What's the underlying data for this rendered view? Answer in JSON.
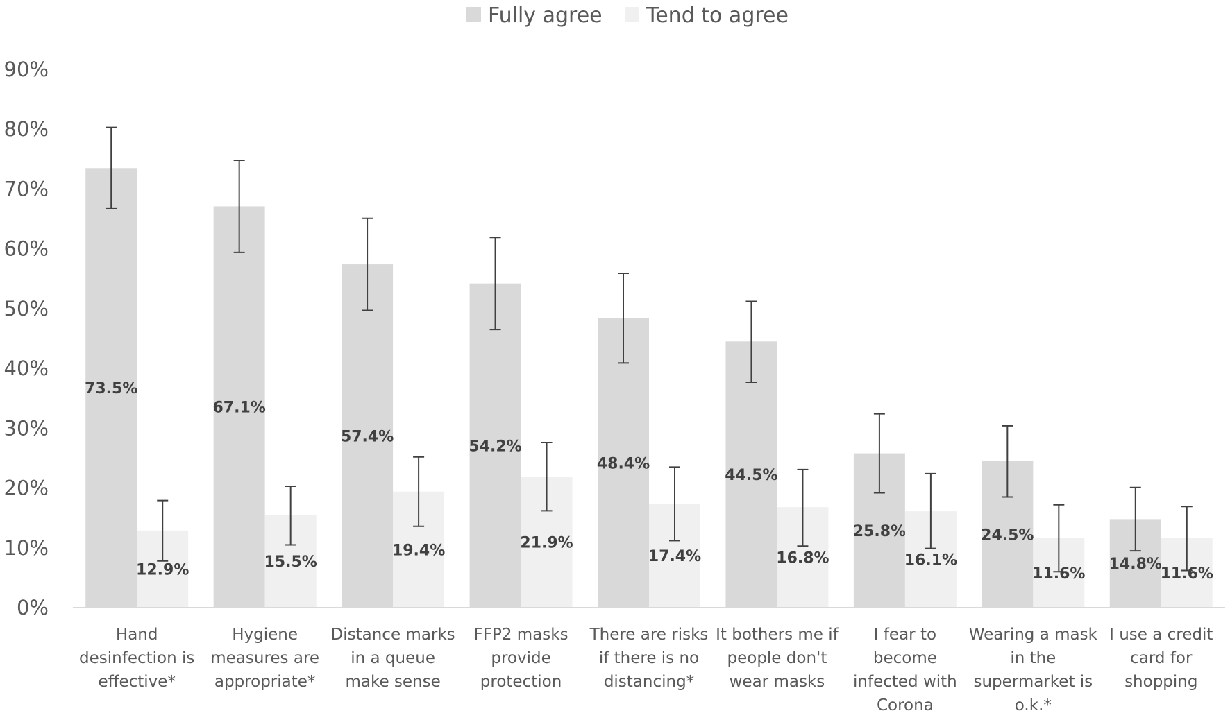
{
  "chart_data": {
    "type": "bar",
    "categories": [
      [
        "Hand",
        "desinfection is",
        "effective*"
      ],
      [
        "Hygiene",
        "measures are",
        "appropriate*"
      ],
      [
        "Distance marks",
        "in a queue",
        "make sense"
      ],
      [
        "FFP2 masks",
        "provide",
        "protection"
      ],
      [
        "There are risks",
        "if there is no",
        "distancing*"
      ],
      [
        "It bothers me if",
        "people don't",
        "wear masks"
      ],
      [
        "I fear to",
        "become",
        "infected with",
        "Corona"
      ],
      [
        "Wearing a mask",
        "in the",
        "supermarket is",
        "o.k.*"
      ],
      [
        "I use a credit",
        "card for",
        "shopping"
      ]
    ],
    "series": [
      {
        "name": "Fully agree",
        "color": "#d9d9d9",
        "values": [
          73.5,
          67.1,
          57.4,
          54.2,
          48.4,
          44.5,
          25.8,
          24.5,
          14.8
        ],
        "labels": [
          "73.5%",
          "67.1%",
          "57.4%",
          "54.2%",
          "48.4%",
          "44.5%",
          "25.8%",
          "24.5%",
          "14.8%"
        ],
        "error_low": [
          66.7,
          59.4,
          49.7,
          46.5,
          40.9,
          37.7,
          19.2,
          18.5,
          9.5
        ],
        "error_high": [
          80.3,
          74.8,
          65.1,
          61.9,
          55.9,
          51.2,
          32.4,
          30.4,
          20.1
        ]
      },
      {
        "name": "Tend to agree",
        "color": "#f0f0f0",
        "values": [
          12.9,
          15.5,
          19.4,
          21.9,
          17.4,
          16.8,
          16.1,
          11.6,
          11.6
        ],
        "labels": [
          "12.9%",
          "15.5%",
          "19.4%",
          "21.9%",
          "17.4%",
          "16.8%",
          "16.1%",
          "11.6%",
          "11.6%"
        ],
        "error_low": [
          7.8,
          10.5,
          13.6,
          16.2,
          11.2,
          10.3,
          9.9,
          6.0,
          6.2
        ],
        "error_high": [
          17.9,
          20.3,
          25.2,
          27.6,
          23.5,
          23.1,
          22.4,
          17.2,
          16.9
        ]
      }
    ],
    "y_ticks": [
      "0%",
      "10%",
      "20%",
      "30%",
      "40%",
      "50%",
      "60%",
      "70%",
      "80%",
      "90%"
    ],
    "ylim": [
      0,
      90
    ],
    "legend_position": "top-center",
    "grid": false,
    "axis_color": "#d9d9d9",
    "error_bar_color": "#404040"
  }
}
